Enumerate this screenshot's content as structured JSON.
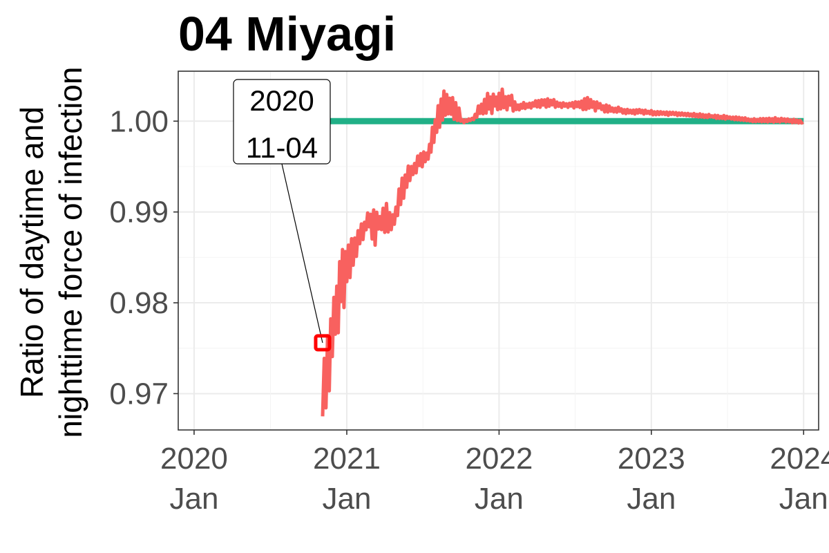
{
  "chart_data": {
    "type": "line",
    "title": "04 Miyagi",
    "ylabel_lines": [
      "Ratio of daytime and",
      "nighttime force of infection"
    ],
    "xlabel": "",
    "xlim": [
      "2019-11-24",
      "2024-02-06"
    ],
    "ylim": [
      0.966,
      1.0055
    ],
    "x_ticks": [
      {
        "date": "2020-01-01",
        "year": "2020",
        "month": "Jan"
      },
      {
        "date": "2021-01-01",
        "year": "2021",
        "month": "Jan"
      },
      {
        "date": "2022-01-01",
        "year": "2022",
        "month": "Jan"
      },
      {
        "date": "2023-01-01",
        "year": "2023",
        "month": "Jan"
      },
      {
        "date": "2024-01-01",
        "year": "2024",
        "month": "Jan"
      }
    ],
    "y_ticks": [
      {
        "value": 0.97,
        "label": "0.97"
      },
      {
        "value": 0.98,
        "label": "0.98"
      },
      {
        "value": 0.99,
        "label": "0.99"
      },
      {
        "value": 1.0,
        "label": "1.00"
      }
    ],
    "grid": true,
    "legend": "none",
    "series": [
      {
        "color": "#21b087",
        "x": [
          "2020-11-04",
          "2024-01-01"
        ],
        "y": [
          1.0,
          1.0
        ]
      },
      {
        "color": "#f8615f",
        "bands": [
          [
            "2020-11-04",
            0.9675,
            0.976
          ],
          [
            "2020-11-20",
            0.969,
            0.979
          ],
          [
            "2020-12-01",
            0.974,
            0.981
          ],
          [
            "2020-12-15",
            0.9775,
            0.985
          ],
          [
            "2021-01-01",
            0.98,
            0.9872
          ],
          [
            "2021-01-20",
            0.9835,
            0.988
          ],
          [
            "2021-02-05",
            0.986,
            0.9895
          ],
          [
            "2021-02-20",
            0.9875,
            0.9905
          ],
          [
            "2021-03-10",
            0.986,
            0.991
          ],
          [
            "2021-03-25",
            0.9875,
            0.9905
          ],
          [
            "2021-04-10",
            0.987,
            0.9912
          ],
          [
            "2021-04-25",
            0.9885,
            0.99
          ],
          [
            "2021-05-10",
            0.9905,
            0.9935
          ],
          [
            "2021-06-01",
            0.993,
            0.9955
          ],
          [
            "2021-06-20",
            0.9945,
            0.9962
          ],
          [
            "2021-07-15",
            0.9955,
            0.997
          ],
          [
            "2021-08-01",
            0.9965,
            1.002
          ],
          [
            "2021-08-15",
            1.0,
            1.0032
          ],
          [
            "2021-09-01",
            0.9995,
            1.0036
          ],
          [
            "2021-09-15",
            0.9995,
            1.0034
          ],
          [
            "2021-10-05",
            0.9997,
            1.0002
          ],
          [
            "2021-11-01",
            1.0,
            1.0005
          ],
          [
            "2021-12-01",
            1.0005,
            1.0037
          ],
          [
            "2022-01-01",
            1.0008,
            1.0036
          ],
          [
            "2022-01-20",
            1.001,
            1.0036
          ],
          [
            "2022-02-15",
            1.0012,
            1.002
          ],
          [
            "2022-03-15",
            1.0014,
            1.0022
          ],
          [
            "2022-05-01",
            1.0015,
            1.0025
          ],
          [
            "2022-06-15",
            1.0015,
            1.002
          ],
          [
            "2022-08-01",
            1.0012,
            1.0027
          ],
          [
            "2022-09-15",
            1.001,
            1.0018
          ],
          [
            "2022-11-01",
            1.0008,
            1.0014
          ],
          [
            "2023-01-01",
            1.0007,
            1.0012
          ],
          [
            "2023-03-01",
            1.0006,
            1.001
          ],
          [
            "2023-05-01",
            1.0004,
            1.0008
          ],
          [
            "2023-07-01",
            1.0002,
            1.0006
          ],
          [
            "2023-09-01",
            0.9999,
            1.0003
          ],
          [
            "2023-11-01",
            0.9999,
            1.0004
          ],
          [
            "2023-12-31",
            0.9997,
            1.0001
          ]
        ]
      }
    ],
    "highlight_point": {
      "x": "2020-11-04",
      "y": 0.9756,
      "color": "#ff0000"
    },
    "annotation": {
      "lines": [
        "2020",
        "11-04"
      ]
    }
  }
}
